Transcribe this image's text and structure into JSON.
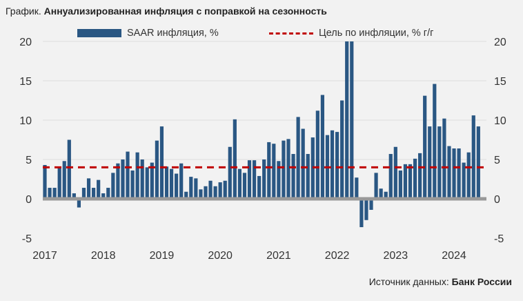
{
  "title_prefix": "График.",
  "title": "Аннуализированная инфляция с поправкой на сезонность",
  "source_label": "Источник данных:",
  "source_name": "Банк России",
  "colors": {
    "bar": "#2a5783",
    "target": "#c00000",
    "zero_line": "#999999",
    "grid": "#dddddd"
  },
  "chart_data": {
    "type": "bar",
    "title": "Аннуализированная инфляция с поправкой на сезонность",
    "frequency": "monthly",
    "x_start": "2017-01",
    "x_tick_labels": [
      "2017",
      "2018",
      "2019",
      "2020",
      "2021",
      "2022",
      "2023",
      "2024"
    ],
    "y_ticks": [
      -5,
      0,
      5,
      10,
      15,
      20
    ],
    "ylim": [
      -5,
      20
    ],
    "axes": "left-and-right",
    "grid": true,
    "legend_position": "top",
    "series": [
      {
        "name": "SAAR инфляция, %",
        "type": "bar",
        "values": [
          4.3,
          1.4,
          1.4,
          4.0,
          4.8,
          7.5,
          0.7,
          -1.1,
          1.4,
          2.6,
          1.4,
          2.4,
          0.7,
          1.4,
          3.3,
          4.5,
          5.0,
          6.0,
          3.6,
          5.9,
          5.0,
          4.0,
          4.6,
          7.4,
          9.2,
          4.1,
          3.8,
          3.2,
          4.5,
          0.9,
          2.8,
          2.6,
          1.2,
          1.6,
          2.3,
          1.6,
          2.1,
          2.3,
          6.6,
          10.1,
          3.8,
          3.3,
          4.9,
          4.9,
          2.9,
          5.0,
          7.2,
          7.0,
          4.8,
          7.4,
          7.6,
          5.7,
          10.4,
          8.9,
          5.7,
          7.8,
          11.2,
          13.2,
          8.1,
          8.7,
          8.5,
          12.5,
          20,
          20,
          2.7,
          -3.6,
          -2.7,
          -1.4,
          3.3,
          1.3,
          0.9,
          5.7,
          6.6,
          3.6,
          4.4,
          4.4,
          5.1,
          5.8,
          13.1,
          9.2,
          14.6,
          9.2,
          10.2,
          6.7,
          6.4,
          6.4,
          4.6,
          5.9,
          10.6,
          9.2
        ]
      },
      {
        "name": "Цель по инфляции, % г/г",
        "type": "line",
        "value": 4
      }
    ]
  }
}
